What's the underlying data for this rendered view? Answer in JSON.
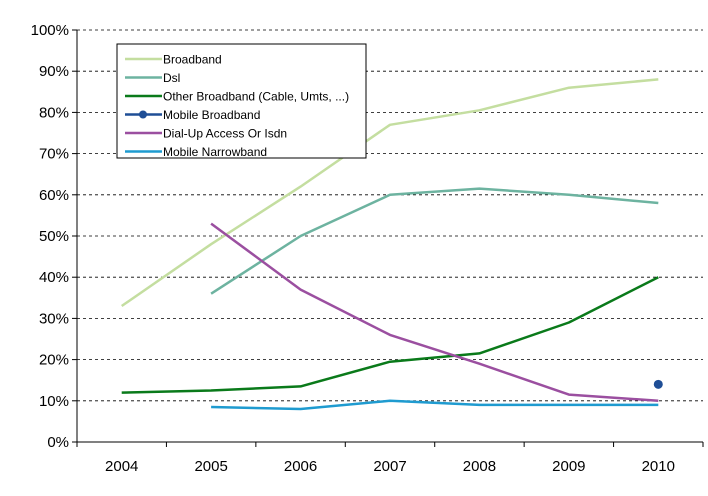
{
  "chart_data": {
    "type": "line",
    "title": "",
    "xlabel": "",
    "ylabel": "",
    "categories": [
      "2004",
      "2005",
      "2006",
      "2007",
      "2008",
      "2009",
      "2010"
    ],
    "ylim": [
      0,
      100
    ],
    "y_ticks": [
      "0%",
      "10%",
      "20%",
      "30%",
      "40%",
      "50%",
      "60%",
      "70%",
      "80%",
      "90%",
      "100%"
    ],
    "grid": "horizontal-dashed",
    "legend_position": "top-left",
    "series": [
      {
        "name": "Broadband",
        "color": "#c4dea0",
        "values": [
          33,
          48,
          62,
          77,
          80.5,
          86,
          88
        ],
        "marker": false
      },
      {
        "name": "Dsl",
        "color": "#6db3a0",
        "values": [
          null,
          36,
          50,
          60,
          61.5,
          60,
          58
        ],
        "marker": false
      },
      {
        "name": "Other Broadband (Cable, Umts, ...)",
        "color": "#0a7a1a",
        "values": [
          12,
          12.5,
          13.5,
          19.5,
          21.5,
          29,
          40
        ],
        "marker": false
      },
      {
        "name": "Mobile Broadband",
        "color": "#1f4e96",
        "values": [
          null,
          null,
          null,
          null,
          null,
          null,
          14
        ],
        "marker": true
      },
      {
        "name": "Dial-Up Access Or Isdn",
        "color": "#9b4fa0",
        "values": [
          null,
          53,
          37,
          26,
          19,
          11.5,
          10
        ],
        "marker": false
      },
      {
        "name": "Mobile Narrowband",
        "color": "#1f9bd0",
        "values": [
          null,
          8.5,
          8,
          10,
          9,
          9,
          9
        ],
        "marker": false
      }
    ]
  }
}
